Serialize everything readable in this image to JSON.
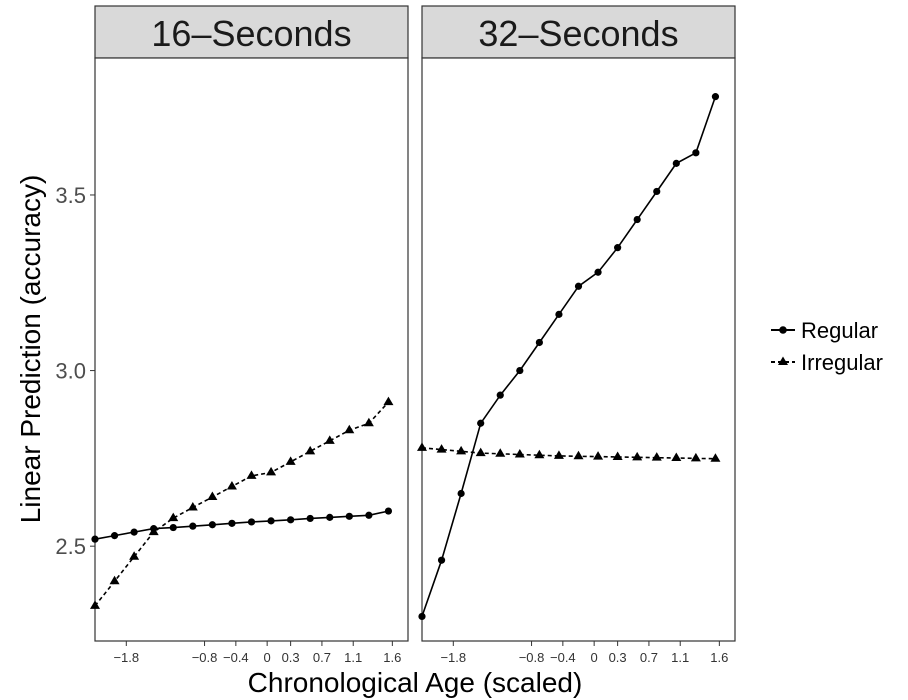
{
  "chart_data": {
    "type": "line",
    "xlabel": "Chronological Age (scaled)",
    "ylabel": "Linear Prediction (accuracy)",
    "ylim": [
      2.23,
      3.89
    ],
    "xlim": [
      -2.2,
      1.8
    ],
    "x_ticks": [
      -1.8,
      -0.8,
      -0.4,
      0,
      0.3,
      0.7,
      1.1,
      1.6
    ],
    "x_tick_labels": [
      "−1.8",
      "−0.8",
      "−0.4",
      "0",
      "0.3",
      "0.7",
      "1.1",
      "1.6"
    ],
    "y_ticks": [
      2.5,
      3.0,
      3.5
    ],
    "y_tick_labels": [
      "2.5",
      "3.0",
      "3.5"
    ],
    "x": [
      -2.2,
      -1.95,
      -1.7,
      -1.45,
      -1.2,
      -0.95,
      -0.7,
      -0.45,
      -0.2,
      0.05,
      0.3,
      0.55,
      0.8,
      1.05,
      1.3,
      1.55
    ],
    "legend": {
      "position": "right",
      "entries": [
        {
          "name": "Regular",
          "linetype": "solid",
          "marker": "circle"
        },
        {
          "name": "Irregular",
          "linetype": "dashed",
          "marker": "triangle"
        }
      ]
    },
    "panels": [
      {
        "title": "16–Seconds",
        "series": [
          {
            "name": "Regular",
            "values": [
              2.52,
              2.53,
              2.54,
              2.55,
              2.553,
              2.557,
              2.561,
              2.565,
              2.569,
              2.572,
              2.575,
              2.579,
              2.582,
              2.585,
              2.588,
              2.6
            ]
          },
          {
            "name": "Irregular",
            "values": [
              2.33,
              2.4,
              2.47,
              2.54,
              2.58,
              2.61,
              2.64,
              2.67,
              2.7,
              2.71,
              2.74,
              2.77,
              2.8,
              2.83,
              2.85,
              2.91
            ]
          }
        ]
      },
      {
        "title": "32–Seconds",
        "series": [
          {
            "name": "Regular",
            "values": [
              2.3,
              2.46,
              2.65,
              2.85,
              2.93,
              3.0,
              3.08,
              3.16,
              3.24,
              3.28,
              3.35,
              3.43,
              3.51,
              3.59,
              3.62,
              3.78
            ]
          },
          {
            "name": "Irregular",
            "values": [
              2.78,
              2.775,
              2.77,
              2.765,
              2.763,
              2.761,
              2.759,
              2.757,
              2.756,
              2.755,
              2.754,
              2.753,
              2.752,
              2.751,
              2.75,
              2.749
            ]
          }
        ]
      }
    ]
  }
}
